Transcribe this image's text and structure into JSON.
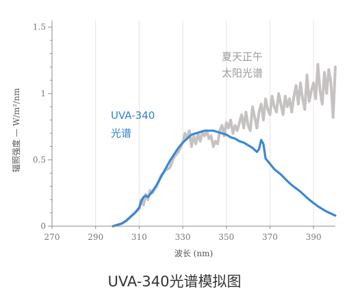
{
  "caption": "UVA-340光谱模拟图",
  "chart_data": {
    "type": "line",
    "xlabel": "波长 (nm)",
    "ylabel": "辐照强度 — W/m²/nm",
    "xlim": [
      270,
      400
    ],
    "ylim": [
      0,
      1.55
    ],
    "x_ticks": [
      270,
      290,
      310,
      330,
      350,
      370,
      390
    ],
    "x_tick_labels": [
      "270",
      "290",
      "310",
      "330",
      "350",
      "370",
      "390"
    ],
    "y_ticks": [
      0,
      0.5,
      1,
      1.5
    ],
    "y_tick_labels": [
      "0",
      "0.5",
      "1",
      "1.5"
    ],
    "grid": {
      "vertical": true,
      "horizontal": false
    },
    "annotations": [
      {
        "id": "uva",
        "lines": [
          "UVA-340",
          "光谱"
        ],
        "color": "#2f7fcf"
      },
      {
        "id": "sun",
        "lines": [
          "夏天正午",
          "太阳光谱"
        ],
        "color": "#9a9a9a"
      }
    ],
    "series": [
      {
        "color": "#c7c2c2",
        "x": [
          298,
          300,
          302,
          304,
          306,
          308,
          310,
          311,
          312,
          313,
          314,
          315,
          316,
          318,
          320,
          322,
          324,
          326,
          328,
          330,
          331,
          332,
          333,
          334,
          335,
          336,
          337,
          338,
          339,
          340,
          341,
          342,
          343,
          344,
          345,
          346,
          347,
          348,
          349,
          350,
          351,
          352,
          353,
          354,
          355,
          356,
          357,
          358,
          359,
          360,
          361,
          362,
          363,
          364,
          365,
          366,
          367,
          368,
          369,
          370,
          371,
          372,
          373,
          374,
          375,
          376,
          377,
          378,
          379,
          380,
          381,
          382,
          383,
          384,
          385,
          386,
          387,
          388,
          389,
          390,
          391,
          392,
          393,
          394,
          395,
          396,
          397,
          398,
          399,
          400
        ],
        "values": [
          0.0,
          0.01,
          0.02,
          0.04,
          0.07,
          0.1,
          0.13,
          0.2,
          0.16,
          0.24,
          0.2,
          0.27,
          0.25,
          0.3,
          0.38,
          0.42,
          0.44,
          0.52,
          0.56,
          0.63,
          0.7,
          0.66,
          0.72,
          0.6,
          0.68,
          0.62,
          0.7,
          0.64,
          0.71,
          0.68,
          0.72,
          0.66,
          0.68,
          0.6,
          0.64,
          0.62,
          0.72,
          0.76,
          0.68,
          0.78,
          0.74,
          0.8,
          0.7,
          0.76,
          0.72,
          0.78,
          0.84,
          0.74,
          0.86,
          0.76,
          0.72,
          0.9,
          0.82,
          0.74,
          0.86,
          0.92,
          0.8,
          0.96,
          0.88,
          0.84,
          0.98,
          0.9,
          0.86,
          1.0,
          0.92,
          0.84,
          0.98,
          0.9,
          0.96,
          0.86,
          0.98,
          1.06,
          0.92,
          1.08,
          0.96,
          0.88,
          1.14,
          0.94,
          1.02,
          1.08,
          0.96,
          1.22,
          1.02,
          0.92,
          1.16,
          1.0,
          1.18,
          1.08,
          0.82,
          1.2
        ]
      },
      {
        "color": "#3a87d4",
        "x": [
          298,
          300,
          302,
          304,
          306,
          308,
          310,
          311,
          312,
          313,
          314,
          315,
          316,
          318,
          320,
          322,
          324,
          326,
          328,
          330,
          332,
          334,
          336,
          338,
          340,
          342,
          344,
          346,
          348,
          350,
          352,
          354,
          356,
          358,
          360,
          362,
          364,
          365,
          366,
          367,
          368,
          370,
          372,
          375,
          378,
          380,
          384,
          388,
          392,
          396,
          400
        ],
        "values": [
          0.0,
          0.01,
          0.02,
          0.04,
          0.07,
          0.1,
          0.14,
          0.19,
          0.22,
          0.23,
          0.22,
          0.24,
          0.26,
          0.31,
          0.37,
          0.43,
          0.49,
          0.54,
          0.59,
          0.63,
          0.66,
          0.69,
          0.7,
          0.71,
          0.72,
          0.72,
          0.72,
          0.71,
          0.7,
          0.69,
          0.67,
          0.66,
          0.64,
          0.63,
          0.61,
          0.59,
          0.56,
          0.58,
          0.65,
          0.62,
          0.51,
          0.47,
          0.43,
          0.39,
          0.34,
          0.31,
          0.26,
          0.2,
          0.15,
          0.11,
          0.08
        ]
      }
    ]
  }
}
